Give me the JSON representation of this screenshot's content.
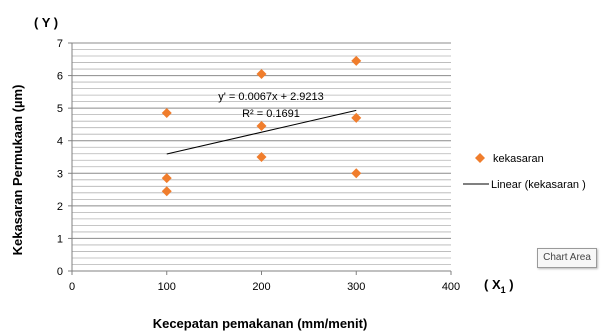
{
  "chart_data": {
    "type": "scatter",
    "y_axis_top_label": "( Y )",
    "x_axis_right_label_prefix": "( X",
    "x_axis_right_label_sub": "1",
    "x_axis_right_label_suffix": " )",
    "xlabel": "Kecepatan  pemakanan (mm/menit)",
    "ylabel": "Kekasaran Permukaan  (µm)",
    "xlim": [
      0,
      400
    ],
    "ylim": [
      0,
      7
    ],
    "x_ticks": [
      0,
      100,
      200,
      300,
      400
    ],
    "y_ticks": [
      0,
      1,
      2,
      3,
      4,
      5,
      6,
      7
    ],
    "grid": "horizontal",
    "series": [
      {
        "name": "kekasaran",
        "color": "#F07D2C",
        "marker": "diamond",
        "points": [
          [
            100,
            4.85
          ],
          [
            100,
            2.85
          ],
          [
            100,
            2.45
          ],
          [
            200,
            6.05
          ],
          [
            200,
            4.45
          ],
          [
            200,
            3.5
          ],
          [
            300,
            6.45
          ],
          [
            300,
            4.7
          ],
          [
            300,
            3.0
          ]
        ]
      }
    ],
    "trendline": {
      "name": "Linear (kekasaran )",
      "type": "linear",
      "slope": 0.0067,
      "intercept": 2.9213,
      "x_range": [
        100,
        300
      ],
      "equation": "y' = 0.0067x + 2.9213",
      "r_squared": "R² = 0.1691",
      "color": "#000000"
    },
    "legend_position": "right"
  },
  "tooltip": "Chart Area"
}
